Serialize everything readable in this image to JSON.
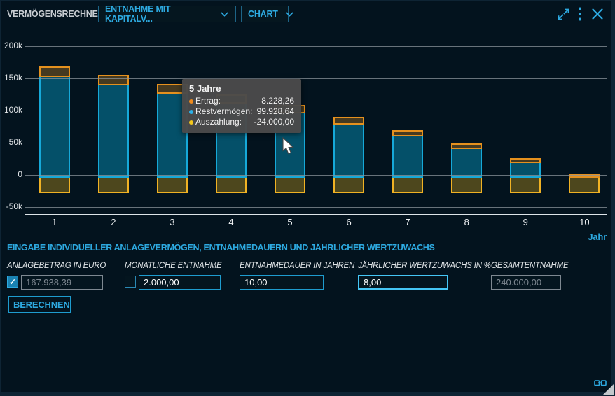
{
  "header": {
    "title": "VERMÖGENSRECHNER",
    "mode_select": "ENTNAHME MIT KAPITALV...",
    "view_select": "CHART",
    "icons": [
      "expand-icon",
      "kebab-menu-icon",
      "close-icon"
    ]
  },
  "colors": {
    "accent": "#2da9e0",
    "background": "#03131e",
    "gridline": "#8b949b",
    "tooltip_bg": "#4a4a4a"
  },
  "chart_data": {
    "type": "bar",
    "stacked": true,
    "x": [
      1,
      2,
      3,
      4,
      5,
      6,
      7,
      8,
      9,
      10
    ],
    "xlabel": "Jahr",
    "ylim": [
      -50000,
      200000
    ],
    "ytick_labels": [
      "200k",
      "150k",
      "100k",
      "50k",
      "0",
      "-50k"
    ],
    "ytick_values": [
      200000,
      150000,
      100000,
      50000,
      0,
      -50000
    ],
    "grid": true,
    "legend": "none (hover tooltip only)",
    "series": [
      {
        "name": "Ertrag",
        "fill": "#463a20",
        "border": "#e5911e",
        "values": [
          12407.27,
          11479.85,
          10478.24,
          9396.5,
          8228.26,
          6966.48,
          5603.8,
          4132.1,
          2542.67,
          826.48
        ]
      },
      {
        "name": "Restvermögen",
        "fill": "#045069",
        "border": "#16a9d9",
        "values": [
          156345.66,
          143825.51,
          130303.75,
          115700.25,
          99928.64,
          82894.95,
          64498.75,
          44630.85,
          23173.52,
          0
        ]
      },
      {
        "name": "Auszahlung",
        "fill": "#4d471d",
        "border": "#f0b224",
        "values": [
          -24000,
          -24000,
          -24000,
          -24000,
          -24000,
          -24000,
          -24000,
          -24000,
          -24000,
          -24000
        ]
      }
    ]
  },
  "tooltip": {
    "title": "5 Jahre",
    "rows": [
      {
        "label": "Ertrag:",
        "value": "8.228,26",
        "color": "#f08c1e"
      },
      {
        "label": "Restvermögen:",
        "value": "99.928,64",
        "color": "#2bb1e8"
      },
      {
        "label": "Auszahlung:",
        "value": "-24.000,00",
        "color": "#f3c71c"
      }
    ]
  },
  "form": {
    "section_title": "EINGABE INDIVIDUELLER ANLAGEVERMÖGEN, ENTNAHMEDAUERN UND JÄHRLICHER WERTZUWACHS",
    "fields": [
      {
        "label": "ANLAGEBETRAG IN EURO",
        "value": "167.938,39",
        "checkbox": "checked",
        "state": "disabled"
      },
      {
        "label": "MONATLICHE ENTNAHME",
        "value": "2.000,00",
        "checkbox": "unchecked",
        "state": "enabled"
      },
      {
        "label": "ENTNAHMEDAUER IN JAHREN",
        "value": "10,00",
        "state": "enabled"
      },
      {
        "label": "JÄHRLICHER WERTZUWACHS IN %",
        "value": "8,00",
        "state": "focused"
      },
      {
        "label": "GESAMTENTNAHME",
        "value": "240.000,00",
        "state": "disabled"
      }
    ],
    "submit_label": "BERECHNEN"
  }
}
